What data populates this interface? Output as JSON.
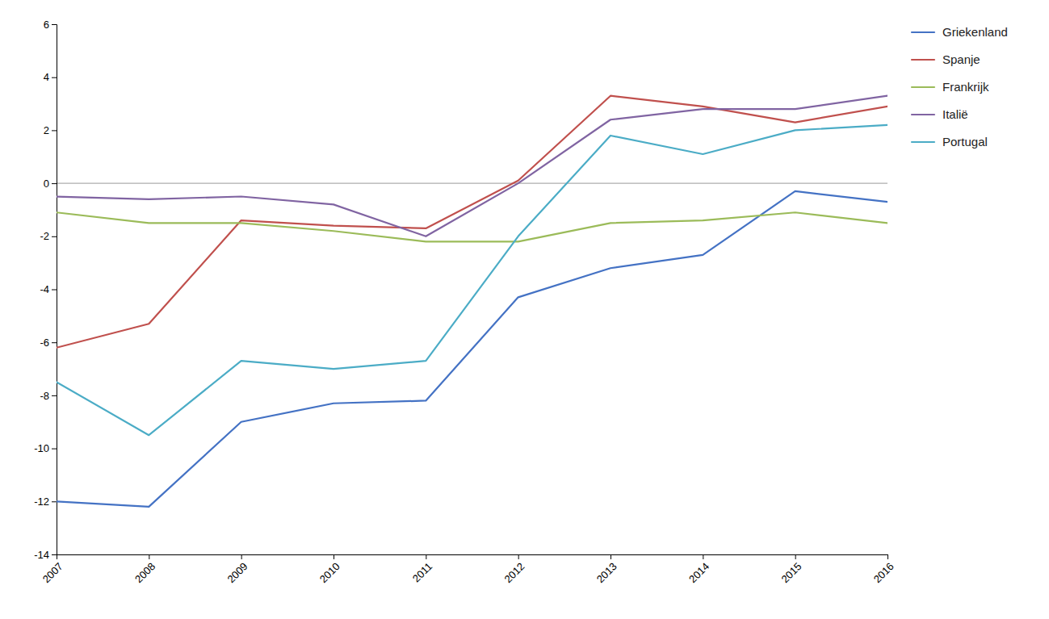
{
  "chart_data": {
    "type": "line",
    "x": [
      2007,
      2008,
      2009,
      2010,
      2011,
      2012,
      2013,
      2014,
      2015,
      2016
    ],
    "xlim": [
      2007,
      2016
    ],
    "xticks": [
      2007,
      2008,
      2009,
      2010,
      2011,
      2012,
      2013,
      2014,
      2015,
      2016
    ],
    "ylim": [
      -14,
      6
    ],
    "yticks": [
      -14,
      -12,
      -10,
      -8,
      -6,
      -4,
      -2,
      0,
      2,
      4,
      6
    ],
    "series": [
      {
        "name": "Griekenland",
        "color": "#4472C4",
        "values": [
          -12.0,
          -12.2,
          -9.0,
          -8.3,
          -8.2,
          -4.3,
          -3.2,
          -2.7,
          -0.3,
          -0.7
        ]
      },
      {
        "name": "Spanje",
        "color": "#C0504D",
        "values": [
          -6.2,
          -5.3,
          -1.4,
          -1.6,
          -1.7,
          0.1,
          3.3,
          2.9,
          2.3,
          2.9
        ]
      },
      {
        "name": "Frankrijk",
        "color": "#9BBB59",
        "values": [
          -1.1,
          -1.5,
          -1.5,
          -1.8,
          -2.2,
          -2.2,
          -1.5,
          -1.4,
          -1.1,
          -1.5
        ]
      },
      {
        "name": "Italië",
        "color": "#8064A2",
        "values": [
          -0.5,
          -0.6,
          -0.5,
          -0.8,
          -2.0,
          0.0,
          2.4,
          2.8,
          2.8,
          3.3
        ]
      },
      {
        "name": "Portugal",
        "color": "#4BACC6",
        "values": [
          -7.5,
          -9.5,
          -6.7,
          -7.0,
          -6.7,
          -2.0,
          1.8,
          1.1,
          2.0,
          2.2
        ]
      }
    ],
    "grid": false,
    "legend": "right"
  }
}
